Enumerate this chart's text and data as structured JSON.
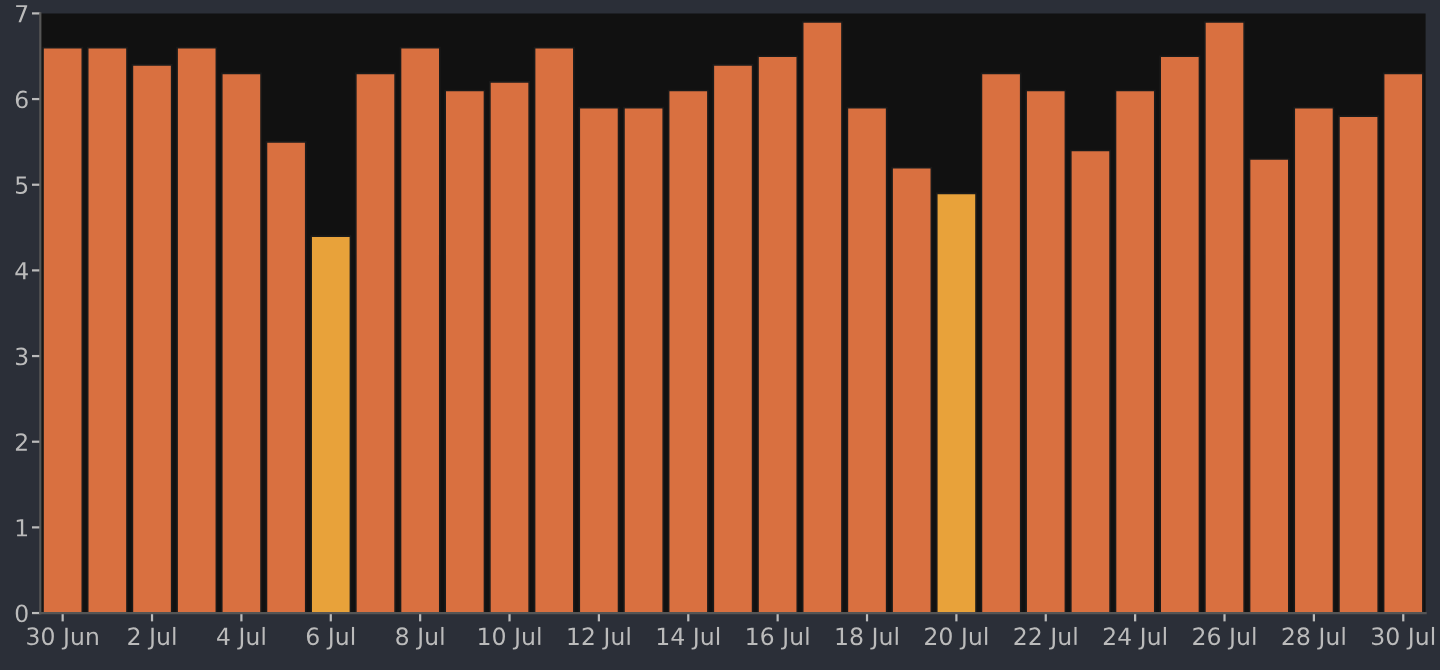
{
  "chart_data": {
    "type": "bar",
    "categories": [
      "30 Jun",
      null,
      "2 Jul",
      null,
      "4 Jul",
      null,
      "6 Jul",
      null,
      "8 Jul",
      null,
      "10 Jul",
      null,
      "12 Jul",
      null,
      "14 Jul",
      null,
      "16 Jul",
      null,
      "18 Jul",
      null,
      "20 Jul",
      null,
      "22 Jul",
      null,
      "24 Jul",
      null,
      "26 Jul",
      null,
      "28 Jul",
      null,
      "30 Jul"
    ],
    "values": [
      6.6,
      6.6,
      6.4,
      6.6,
      6.3,
      5.5,
      4.4,
      6.3,
      6.6,
      6.1,
      6.2,
      6.6,
      5.9,
      5.9,
      6.1,
      6.4,
      6.5,
      6.9,
      5.9,
      5.2,
      4.9,
      6.3,
      6.1,
      5.4,
      6.1,
      6.5,
      6.9,
      5.3,
      5.9,
      5.8,
      6.3
    ],
    "colors": [
      "#d97040",
      "#d97040",
      "#d97040",
      "#d97040",
      "#d97040",
      "#d97040",
      "#e8a23a",
      "#d97040",
      "#d97040",
      "#d97040",
      "#d97040",
      "#d97040",
      "#d97040",
      "#d97040",
      "#d97040",
      "#d97040",
      "#d97040",
      "#d97040",
      "#d97040",
      "#d97040",
      "#e8a23a",
      "#d97040",
      "#d97040",
      "#d97040",
      "#d97040",
      "#d97040",
      "#d97040",
      "#d97040",
      "#d97040",
      "#d97040",
      "#d97040"
    ],
    "ylim": [
      0,
      7
    ],
    "yticks": [
      0,
      1,
      2,
      3,
      4,
      5,
      6,
      7
    ],
    "grid": false
  }
}
